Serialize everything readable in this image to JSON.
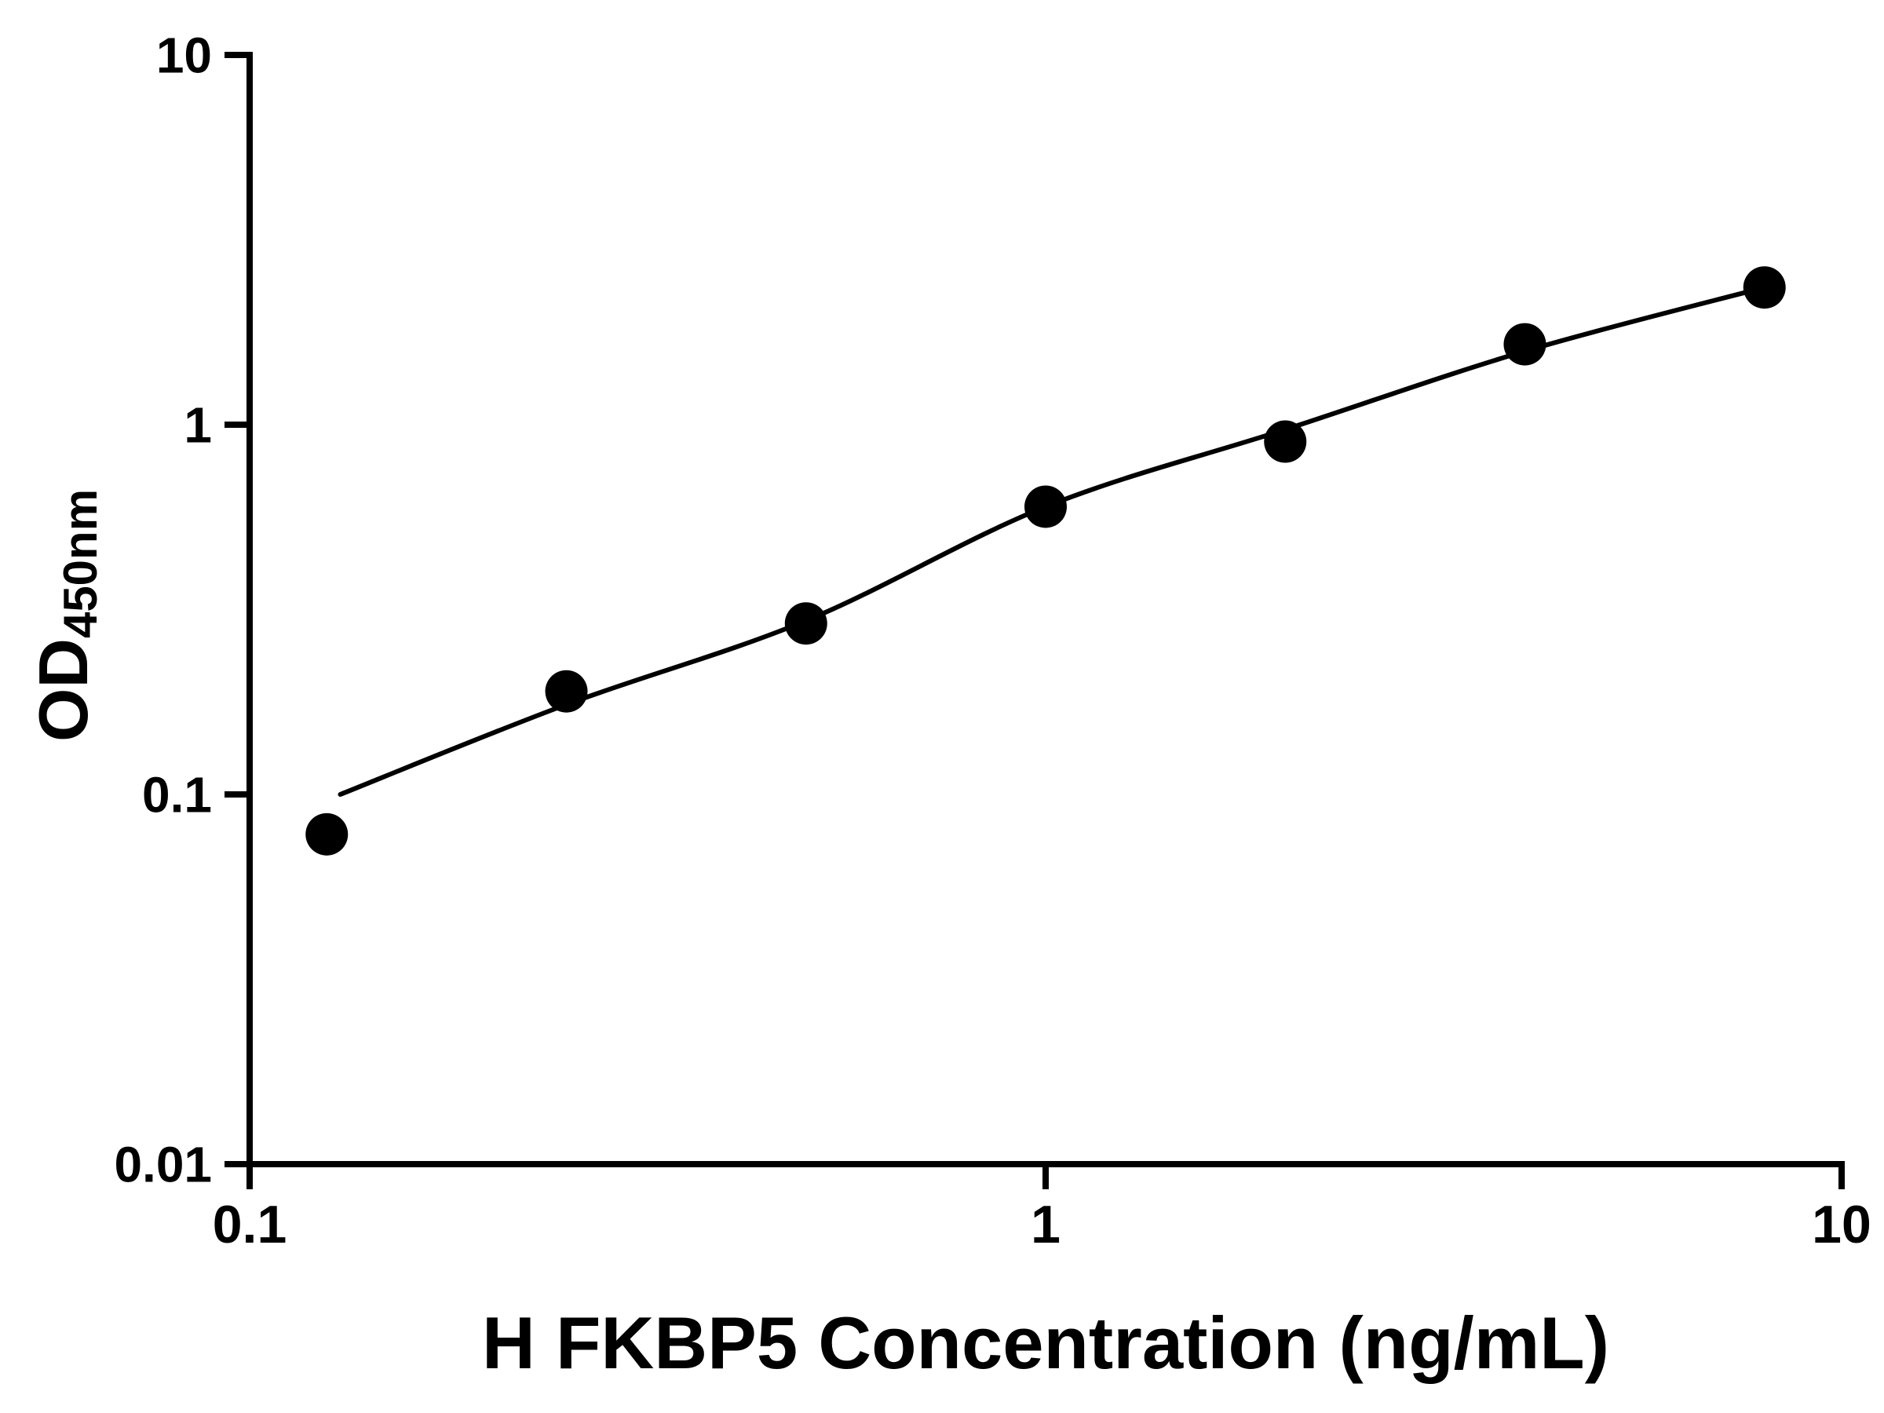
{
  "chart_data": {
    "type": "scatter",
    "title": "",
    "xlabel": "H FKBP5 Concentration (ng/mL)",
    "ylabel_main": "OD",
    "ylabel_sub": "450nm",
    "x_scale": "log",
    "y_scale": "log",
    "xlim": [
      0.1,
      10
    ],
    "ylim": [
      0.01,
      10
    ],
    "x_ticks": [
      0.1,
      1,
      10
    ],
    "x_tick_labels": [
      "0.1",
      "1",
      "10"
    ],
    "y_ticks": [
      0.01,
      0.1,
      1,
      10
    ],
    "y_tick_labels": [
      "0.01",
      "0.1",
      "1",
      "10"
    ],
    "grid": false,
    "legend": "none",
    "background": "#ffffff",
    "marker_color": "#000000",
    "line_color": "#000000",
    "axis_color": "#000000",
    "points": {
      "x": [
        0.125,
        0.25,
        0.5,
        1,
        2,
        4,
        8
      ],
      "y": [
        0.078,
        0.19,
        0.29,
        0.6,
        0.9,
        1.65,
        2.35
      ]
    },
    "fit_curve": {
      "x": [
        0.13,
        0.25,
        0.5,
        1,
        2,
        4,
        8
      ],
      "y": [
        0.1,
        0.175,
        0.295,
        0.6,
        0.97,
        1.58,
        2.35
      ]
    }
  }
}
